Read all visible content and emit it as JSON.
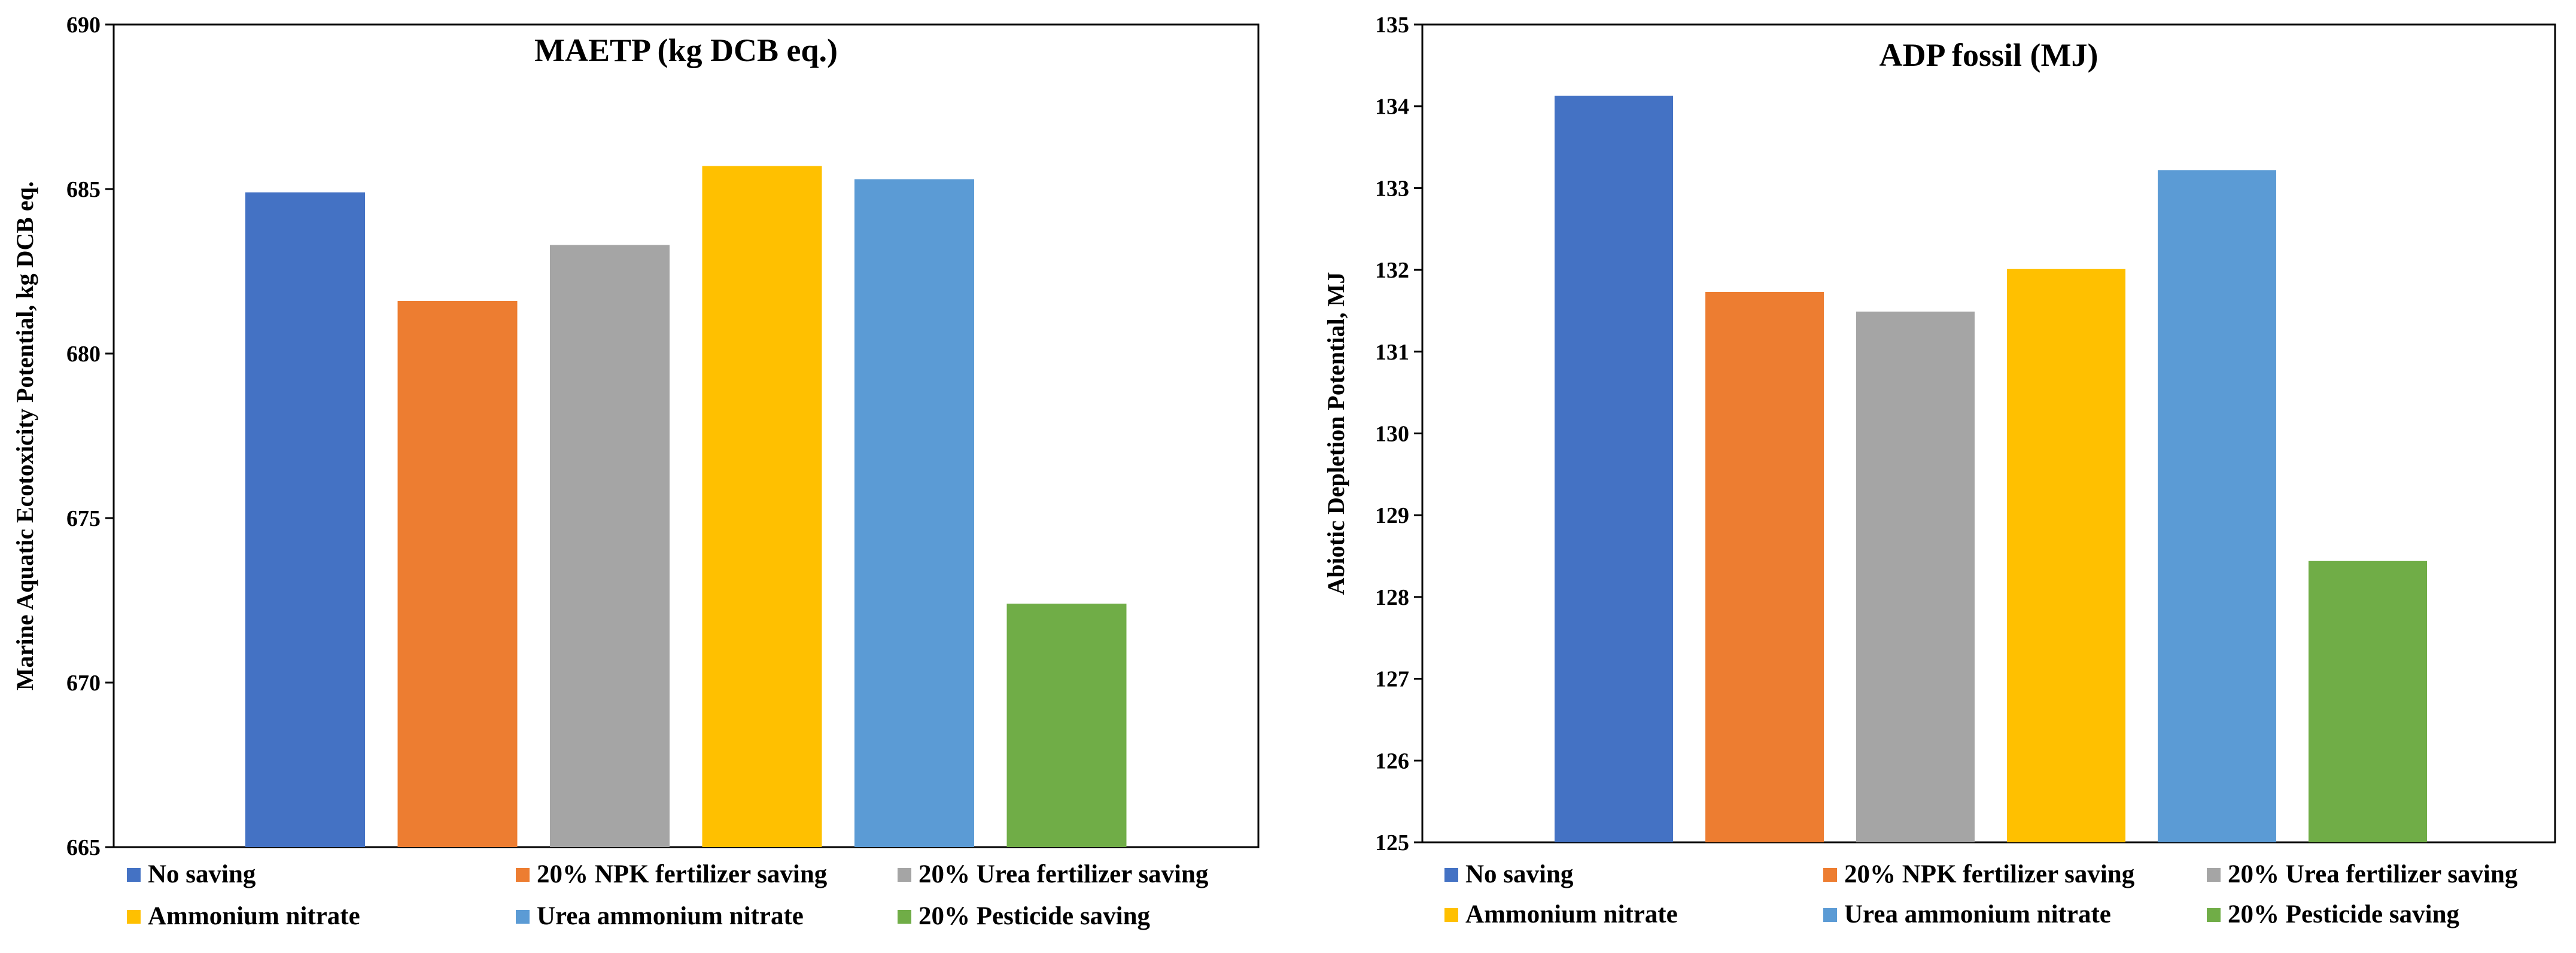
{
  "legend": {
    "entries": [
      {
        "label": "No saving",
        "color": "#4472C4"
      },
      {
        "label": "20% NPK fertilizer saving",
        "color": "#ED7D31"
      },
      {
        "label": "20% Urea fertilizer saving",
        "color": "#A5A5A5"
      },
      {
        "label": "Ammonium nitrate",
        "color": "#FFC000"
      },
      {
        "label": "Urea ammonium nitrate",
        "color": "#5B9BD5"
      },
      {
        "label": "20% Pesticide saving",
        "color": "#70AD47"
      }
    ]
  },
  "chart_data": [
    {
      "type": "bar",
      "title": "MAETP (kg DCB eq.)",
      "xlabel": "",
      "ylabel": "Marine Aquatic Ecotoxicity Potential, kg DCB eq.",
      "ylim": [
        665,
        690
      ],
      "yticks": [
        665,
        670,
        675,
        680,
        685,
        690
      ],
      "grid": false,
      "legend_position": "bottom",
      "series": [
        {
          "name": "No saving",
          "values": [
            684.9
          ]
        },
        {
          "name": "20% NPK fertilizer saving",
          "values": [
            681.6
          ]
        },
        {
          "name": "20% Urea fertilizer saving",
          "values": [
            683.3
          ]
        },
        {
          "name": "Ammonium nitrate",
          "values": [
            685.7
          ]
        },
        {
          "name": "Urea ammonium nitrate",
          "values": [
            685.3
          ]
        },
        {
          "name": "20% Pesticide saving",
          "values": [
            672.4
          ]
        }
      ]
    },
    {
      "type": "bar",
      "title": "ADP fossil (MJ)",
      "xlabel": "",
      "ylabel": "Abiotic Depletion Potential, MJ",
      "ylim": [
        125,
        135
      ],
      "yticks": [
        125,
        126,
        127,
        128,
        129,
        130,
        131,
        132,
        133,
        134,
        135
      ],
      "grid": false,
      "legend_position": "bottom",
      "series": [
        {
          "name": "No saving",
          "values": [
            134.13
          ]
        },
        {
          "name": "20% NPK fertilizer saving",
          "values": [
            131.73
          ]
        },
        {
          "name": "20% Urea fertilizer saving",
          "values": [
            131.49
          ]
        },
        {
          "name": "Ammonium nitrate",
          "values": [
            132.01
          ]
        },
        {
          "name": "Urea ammonium nitrate",
          "values": [
            133.22
          ]
        },
        {
          "name": "20% Pesticide saving",
          "values": [
            128.44
          ]
        }
      ]
    }
  ]
}
